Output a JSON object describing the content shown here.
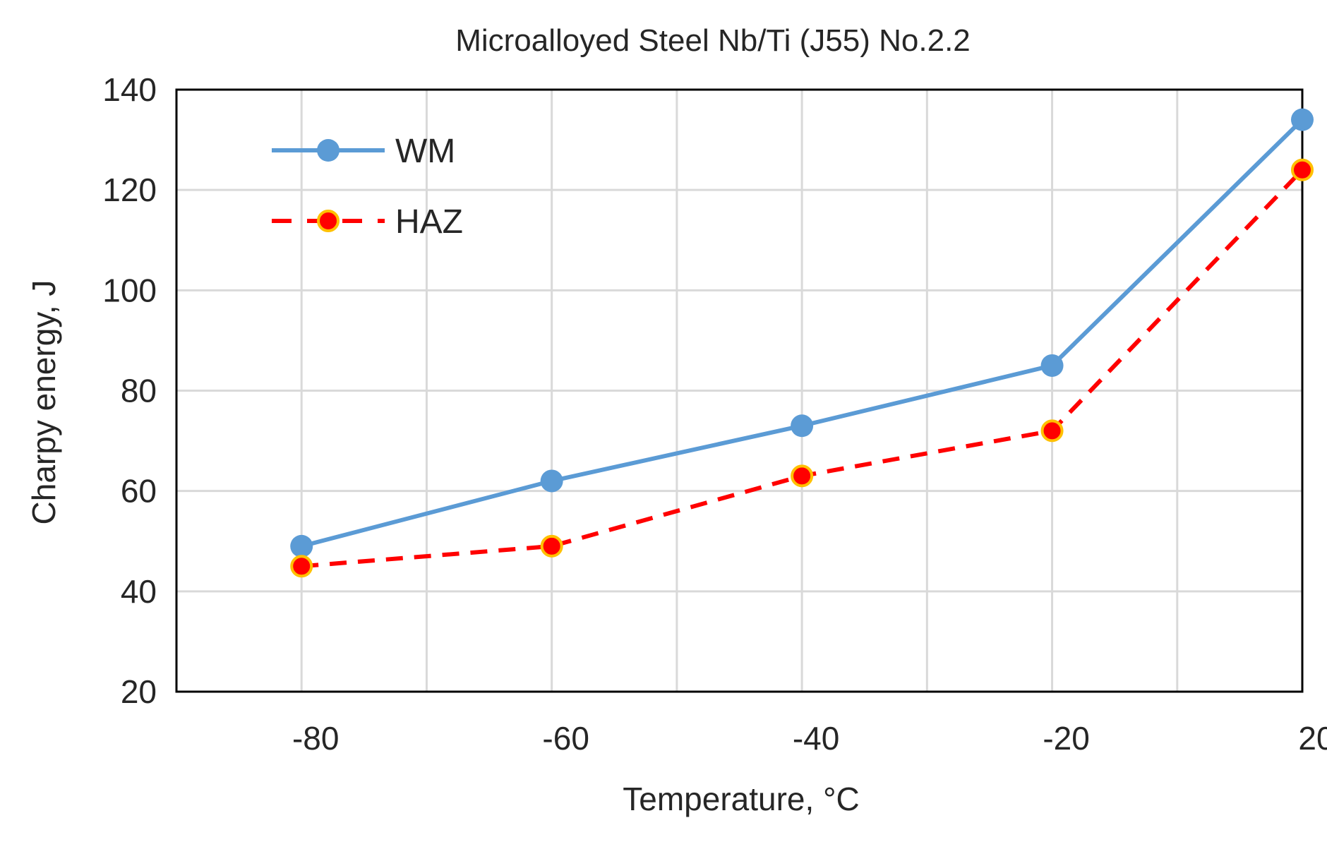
{
  "chart_data": {
    "type": "line",
    "title": "Microalloyed Steel Nb/Ti (J55) No.2.2",
    "xlabel": "Temperature, °C",
    "ylabel": "Charpy energy, J",
    "categories": [
      "-80",
      "-60",
      "-40",
      "-20",
      "20"
    ],
    "xlim": [
      -90,
      0
    ],
    "ylim": [
      20,
      140
    ],
    "yticks": [
      20,
      40,
      60,
      80,
      100,
      120,
      140
    ],
    "grid": true,
    "legend_position": "top-left",
    "series": [
      {
        "name": "WM",
        "x": [
          -80,
          -60,
          -40,
          -20,
          0
        ],
        "values": [
          49,
          62,
          73,
          85,
          134
        ],
        "color": "#5b9bd5",
        "style": "solid"
      },
      {
        "name": "HAZ",
        "x": [
          -80,
          -60,
          -40,
          -20,
          0
        ],
        "values": [
          45,
          49,
          63,
          72,
          124
        ],
        "color": "#ff0000",
        "style": "dashed"
      }
    ]
  }
}
